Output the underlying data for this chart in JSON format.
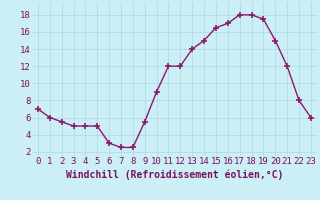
{
  "x": [
    0,
    1,
    2,
    3,
    4,
    5,
    6,
    7,
    8,
    9,
    10,
    11,
    12,
    13,
    14,
    15,
    16,
    17,
    18,
    19,
    20,
    21,
    22,
    23
  ],
  "y": [
    7,
    6,
    5.5,
    5,
    5,
    5,
    3,
    2.5,
    2.5,
    5.5,
    9,
    12,
    12,
    14,
    15,
    16.5,
    17,
    18,
    18,
    17.5,
    15,
    12,
    8,
    6
  ],
  "line_color": "#8b1a6b",
  "marker": "+",
  "marker_size": 4,
  "marker_lw": 1.2,
  "bg_color": "#cceef5",
  "grid_color": "#b0dde8",
  "xlim": [
    -0.5,
    23.5
  ],
  "ylim": [
    1.5,
    19.5
  ],
  "yticks": [
    2,
    4,
    6,
    8,
    10,
    12,
    14,
    16,
    18
  ],
  "xticks": [
    0,
    1,
    2,
    3,
    4,
    5,
    6,
    7,
    8,
    9,
    10,
    11,
    12,
    13,
    14,
    15,
    16,
    17,
    18,
    19,
    20,
    21,
    22,
    23
  ],
  "xlabel": "Windchill (Refroidissement éolien,°C)",
  "xlabel_fontsize": 7,
  "tick_fontsize": 6.5,
  "label_color": "#7a1060",
  "line_width": 1.0
}
